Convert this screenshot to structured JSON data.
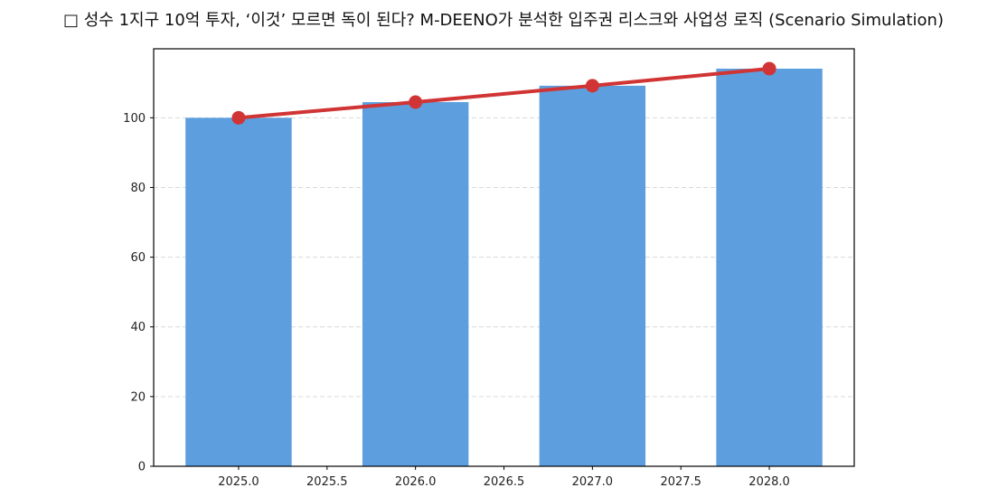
{
  "title": "□ 성수 1지구 10억 투자, ‘이것’ 모르면 독이 된다? M-DEENO가 분석한 입주권 리스크와 사업성 로직 (Scenario Simulation)",
  "colors": {
    "bar": "#5d9fde",
    "line": "#d13434",
    "grid": "#d9d9d9",
    "axis": "#000000"
  },
  "chart_data": {
    "type": "bar",
    "title": "□ 성수 1지구 10억 투자, ‘이것’ 모르면 독이 된다? M-DEENO가 분석한 입주권 리스크와 사업성 로직 (Scenario Simulation)",
    "xlabel": "",
    "ylabel": "",
    "categories": [
      2025,
      2026,
      2027,
      2028
    ],
    "series": [
      {
        "name": "bar",
        "type": "bar",
        "color": "#5d9fde",
        "values": [
          100.0,
          104.5,
          109.2,
          114.1
        ]
      },
      {
        "name": "line",
        "type": "line",
        "color": "#d13434",
        "marker": "circle",
        "values": [
          100.0,
          104.5,
          109.2,
          114.1
        ]
      }
    ],
    "bar_width": 0.6,
    "xlim": [
      2024.52,
      2028.48
    ],
    "ylim": [
      0,
      119.8
    ],
    "xticks": [
      "2025.0",
      "2025.5",
      "2026.0",
      "2026.5",
      "2027.0",
      "2027.5",
      "2028.0"
    ],
    "yticks": [
      "0",
      "20",
      "40",
      "60",
      "80",
      "100"
    ],
    "grid": {
      "axis": "y",
      "style": "dashed"
    },
    "legend": null
  }
}
